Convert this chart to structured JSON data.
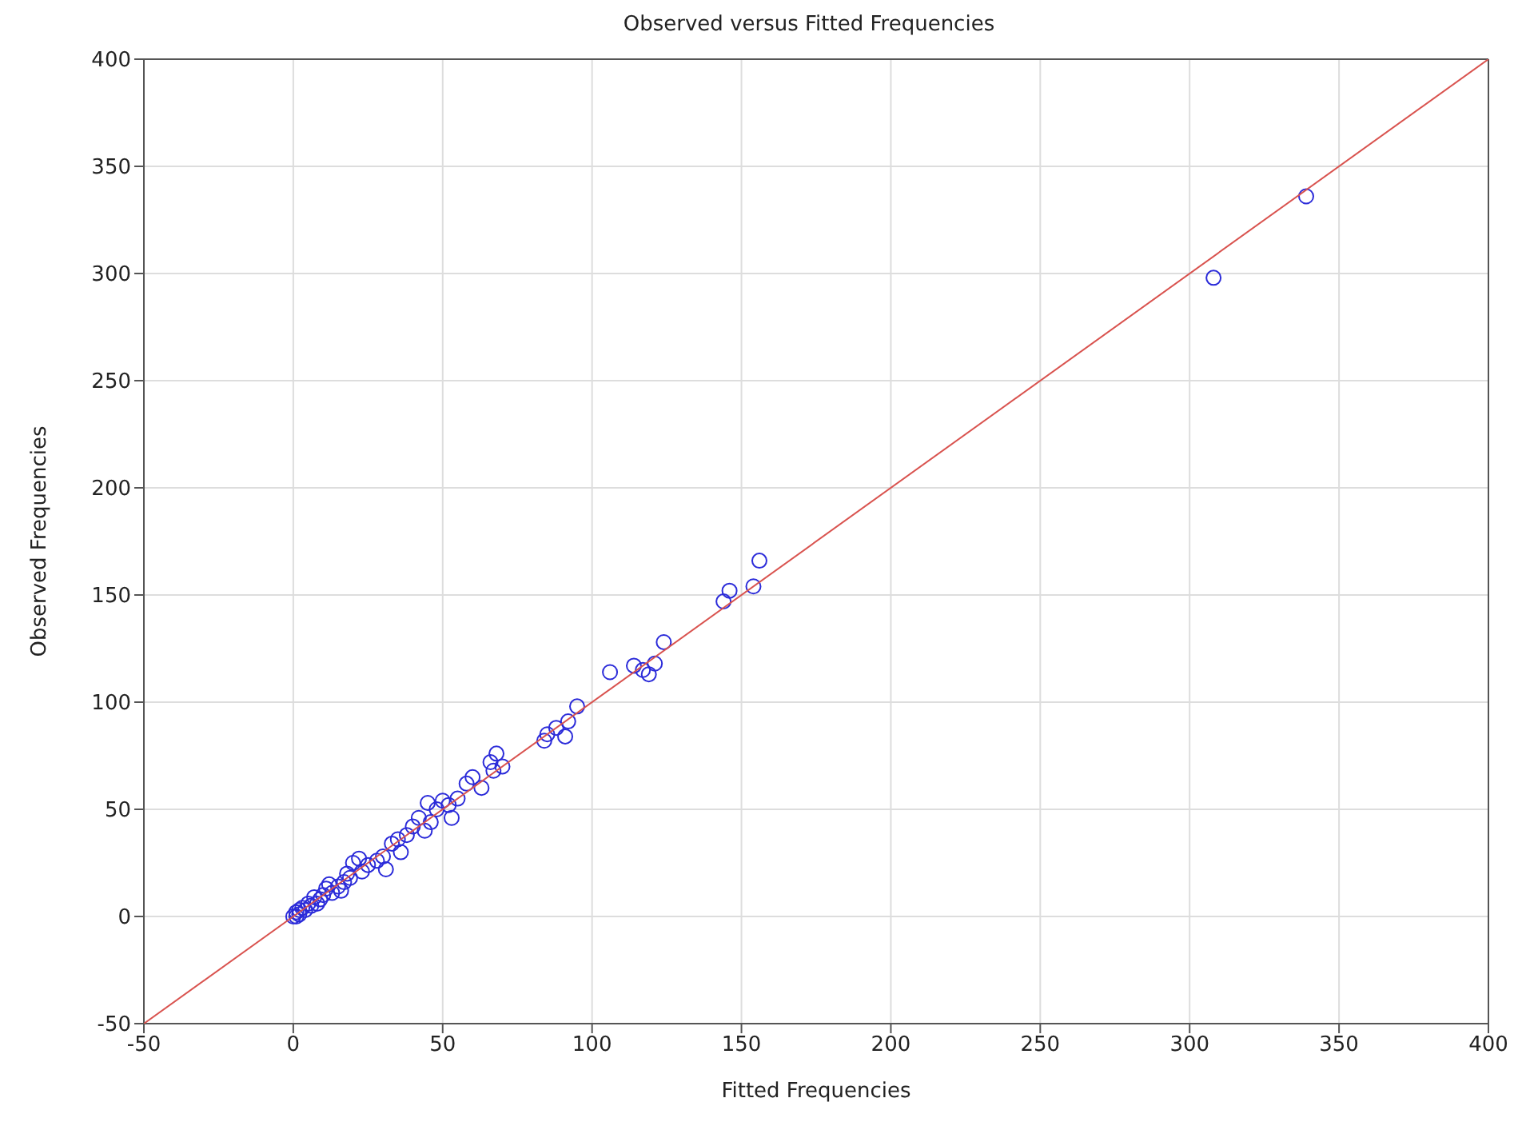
{
  "chart_data": {
    "type": "scatter",
    "title": "Observed versus Fitted Frequencies",
    "xlabel": "Fitted Frequencies",
    "ylabel": "Observed Frequencies",
    "xlim": [
      -50,
      400
    ],
    "ylim": [
      -50,
      400
    ],
    "xticks": [
      -50,
      0,
      50,
      100,
      150,
      200,
      250,
      300,
      350,
      400
    ],
    "yticks": [
      -50,
      0,
      50,
      100,
      150,
      200,
      250,
      300,
      350,
      400
    ],
    "grid": true,
    "marker": "circle",
    "series": [
      {
        "color": "#2b2bd9",
        "x": [
          308,
          339,
          156,
          154,
          146,
          144,
          124,
          121,
          119,
          117,
          114,
          106,
          95,
          92,
          91,
          88,
          85,
          84,
          70,
          68,
          67,
          66,
          63,
          60,
          58,
          55,
          53,
          52,
          50,
          48,
          46,
          45,
          44,
          42,
          40,
          38,
          36,
          35,
          33,
          31,
          30,
          28,
          25,
          23,
          22,
          20,
          19,
          18,
          17,
          16,
          15,
          13,
          12,
          11,
          10,
          9,
          8,
          7,
          6,
          5,
          4,
          3,
          2,
          1,
          0,
          1,
          2
        ],
        "values": [
          298,
          336,
          166,
          154,
          152,
          147,
          128,
          118,
          113,
          115,
          117,
          114,
          98,
          91,
          84,
          88,
          85,
          82,
          70,
          76,
          68,
          72,
          60,
          65,
          62,
          55,
          46,
          52,
          54,
          50,
          44,
          53,
          40,
          46,
          42,
          38,
          30,
          36,
          34,
          22,
          28,
          26,
          24,
          21,
          27,
          25,
          18,
          20,
          16,
          12,
          14,
          11,
          15,
          13,
          10,
          8,
          6,
          9,
          5,
          6,
          3,
          4,
          1,
          2,
          0,
          0,
          3
        ]
      },
      {
        "type": "line",
        "color": "#d9534f",
        "marker": "none",
        "x": [
          -50,
          400
        ],
        "values": [
          -50,
          400
        ]
      }
    ]
  }
}
